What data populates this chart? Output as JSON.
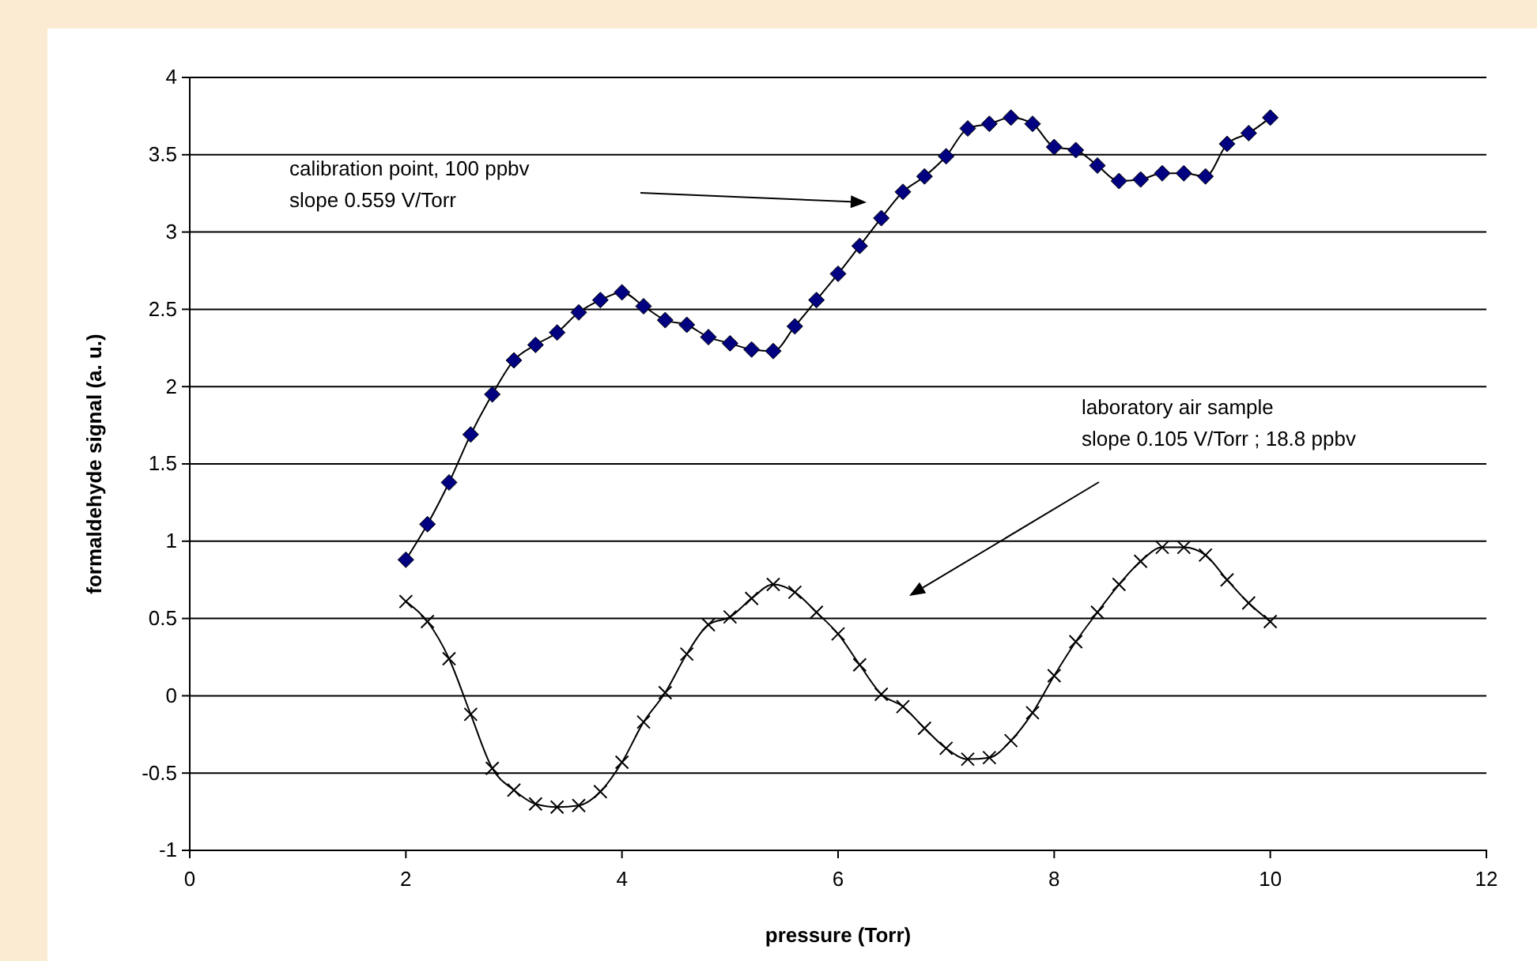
{
  "chart_data": {
    "type": "line",
    "xlabel": "pressure (Torr)",
    "ylabel": "formaldehyde signal (a. u.)",
    "xlim": [
      0,
      12
    ],
    "xticks": [
      0,
      2,
      4,
      6,
      8,
      10,
      12
    ],
    "ylim": [
      -1,
      4
    ],
    "yticks": [
      -1,
      -0.5,
      0,
      0.5,
      1,
      1.5,
      2,
      2.5,
      3,
      3.5,
      4
    ],
    "grid": "y",
    "x": [
      2,
      2.2,
      2.4,
      2.6,
      2.8,
      3,
      3.2,
      3.4,
      3.6,
      3.8,
      4,
      4.2,
      4.4,
      4.6,
      4.8,
      5,
      5.2,
      5.4,
      5.6,
      5.8,
      6,
      6.2,
      6.4,
      6.6,
      6.8,
      7,
      7.2,
      7.4,
      7.6,
      7.8,
      8,
      8.2,
      8.4,
      8.6,
      8.8,
      9,
      9.2,
      9.4,
      9.6,
      9.8,
      10
    ],
    "series": [
      {
        "color": "#000080",
        "marker": "diamond",
        "values": [
          0.88,
          1.11,
          1.38,
          1.69,
          1.95,
          2.17,
          2.27,
          2.35,
          2.48,
          2.56,
          2.61,
          2.52,
          2.43,
          2.4,
          2.32,
          2.28,
          2.24,
          2.23,
          2.39,
          2.56,
          2.73,
          2.91,
          3.09,
          3.26,
          3.36,
          3.49,
          3.67,
          3.7,
          3.74,
          3.7,
          3.55,
          3.53,
          3.43,
          3.33,
          3.34,
          3.38,
          3.38,
          3.36,
          3.57,
          3.64,
          3.74
        ]
      },
      {
        "color": "#000000",
        "marker": "cross",
        "values": [
          0.61,
          0.48,
          0.24,
          -0.12,
          -0.47,
          -0.61,
          -0.7,
          -0.72,
          -0.71,
          -0.62,
          -0.43,
          -0.17,
          0.02,
          0.27,
          0.46,
          0.51,
          0.63,
          0.72,
          0.67,
          0.54,
          0.4,
          0.2,
          0.01,
          -0.07,
          -0.21,
          -0.34,
          -0.41,
          -0.4,
          -0.29,
          -0.11,
          0.13,
          0.35,
          0.54,
          0.72,
          0.87,
          0.96,
          0.96,
          0.91,
          0.75,
          0.6,
          0.48
        ]
      }
    ],
    "annotations": [
      "calibration point, 100 ppbv\nslope 0.559 V/Torr",
      "laboratory air sample\nslope 0.105 V/Torr ; 18.8 ppbv"
    ]
  }
}
